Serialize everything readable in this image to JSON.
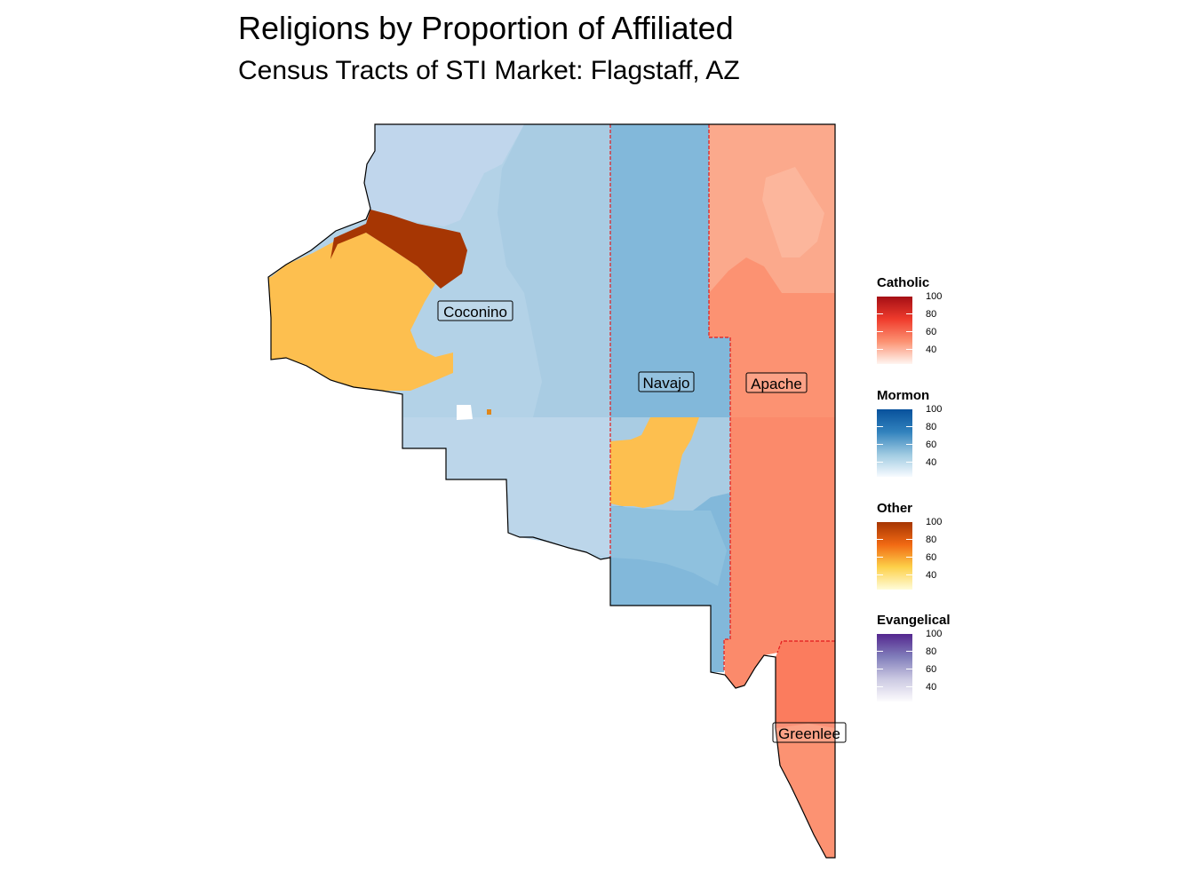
{
  "title": "Religions by Proportion of Affiliated",
  "subtitle": "Census Tracts of STI Market: Flagstaff, AZ",
  "counties": [
    {
      "key": "coconino",
      "label": "Coconino",
      "dominant_religion": "Mormon"
    },
    {
      "key": "navajo",
      "label": "Navajo",
      "dominant_religion": "Mormon"
    },
    {
      "key": "apache",
      "label": "Apache",
      "dominant_religion": "Catholic"
    },
    {
      "key": "greenlee",
      "label": "Greenlee",
      "dominant_religion": "Catholic"
    }
  ],
  "legends": [
    {
      "key": "catholic",
      "title": "Catholic",
      "ticks": [
        "100",
        "80",
        "60",
        "40"
      ],
      "colors": [
        "#a50f15",
        "#ef3b2c",
        "#fc9272",
        "#fff5f0"
      ]
    },
    {
      "key": "mormon",
      "title": "Mormon",
      "ticks": [
        "100",
        "80",
        "60",
        "40"
      ],
      "colors": [
        "#08519c",
        "#3182bd",
        "#9ecae1",
        "#f7fbff"
      ]
    },
    {
      "key": "other",
      "title": "Other",
      "ticks": [
        "100",
        "80",
        "60",
        "40"
      ],
      "colors": [
        "#a63603",
        "#f16913",
        "#fdd049",
        "#fffcd8"
      ]
    },
    {
      "key": "evangelical",
      "title": "Evangelical",
      "ticks": [
        "100",
        "80",
        "60",
        "40"
      ],
      "colors": [
        "#54278f",
        "#807dba",
        "#cbc9e2",
        "#fcfbfd"
      ]
    }
  ],
  "colors": {
    "mormon_light": "#c0d6ec",
    "mormon_mid": "#a9cce3",
    "mormon_dark": "#82b8da",
    "catholic_light": "#fba98c",
    "catholic_mid": "#fc8f72",
    "catholic_dark": "#fb7c5e",
    "other_light": "#fdbf4f",
    "other_dark": "#a63603",
    "county_border": "#e41a1c",
    "outline": "#000000"
  }
}
